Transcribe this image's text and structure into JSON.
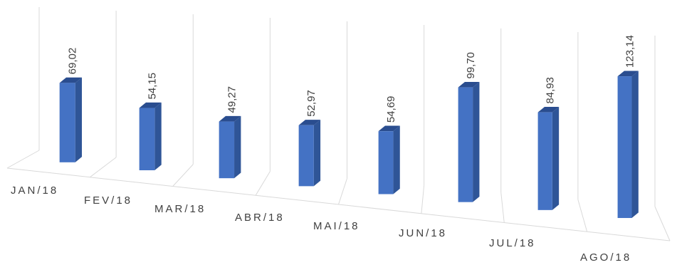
{
  "chart_data": {
    "type": "bar",
    "categories": [
      "JAN/18",
      "FEV/18",
      "MAR/18",
      "ABR/18",
      "MAI/18",
      "JUN/18",
      "JUL/18",
      "AGO/18"
    ],
    "values": [
      69.02,
      54.15,
      49.27,
      52.97,
      54.69,
      99.7,
      84.93,
      123.14
    ],
    "value_labels": [
      "69,02",
      "54,15",
      "49,27",
      "52,97",
      "54,69",
      "99,70",
      "84,93",
      "123,14"
    ],
    "title": "",
    "xlabel": "",
    "ylabel": "",
    "style": "3d-column",
    "grid": "vertical-walls",
    "legend": "none",
    "colors": {
      "bar_front": "#4472c4",
      "bar_side": "#2f5597",
      "bar_top": "#2a4d8f",
      "grid": "#d9d9d9"
    }
  }
}
